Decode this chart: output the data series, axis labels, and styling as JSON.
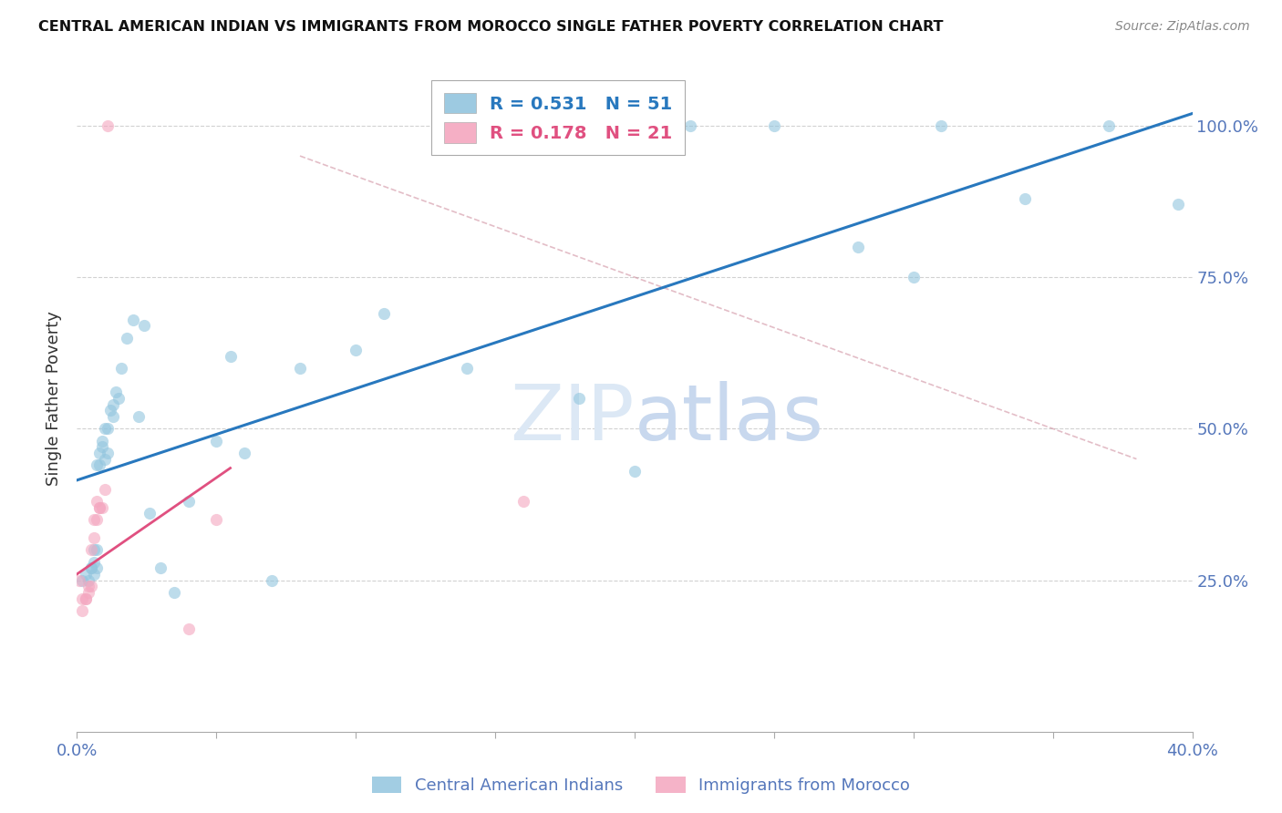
{
  "title": "CENTRAL AMERICAN INDIAN VS IMMIGRANTS FROM MOROCCO SINGLE FATHER POVERTY CORRELATION CHART",
  "source": "Source: ZipAtlas.com",
  "ylabel": "Single Father Poverty",
  "xlim": [
    0.0,
    0.4
  ],
  "ylim": [
    0.0,
    1.1
  ],
  "xticks": [
    0.0,
    0.05,
    0.1,
    0.15,
    0.2,
    0.25,
    0.3,
    0.35,
    0.4
  ],
  "yticks": [
    0.0,
    0.25,
    0.5,
    0.75,
    1.0
  ],
  "yticklabels": [
    "",
    "25.0%",
    "50.0%",
    "75.0%",
    "100.0%"
  ],
  "blue_R": "0.531",
  "blue_N": "51",
  "pink_R": "0.178",
  "pink_N": "21",
  "blue_color": "#92c5de",
  "pink_color": "#f4a6bf",
  "blue_line_color": "#2878be",
  "pink_line_color": "#e05080",
  "axis_color": "#5577bb",
  "grid_color": "#cccccc",
  "watermark_color": "#dce8f5",
  "blue_scatter_x": [
    0.002,
    0.003,
    0.004,
    0.005,
    0.005,
    0.006,
    0.006,
    0.006,
    0.007,
    0.007,
    0.007,
    0.008,
    0.008,
    0.009,
    0.009,
    0.01,
    0.01,
    0.011,
    0.011,
    0.012,
    0.013,
    0.013,
    0.014,
    0.015,
    0.016,
    0.018,
    0.02,
    0.022,
    0.024,
    0.026,
    0.03,
    0.035,
    0.04,
    0.05,
    0.055,
    0.06,
    0.07,
    0.08,
    0.1,
    0.11,
    0.14,
    0.18,
    0.2,
    0.22,
    0.25,
    0.28,
    0.3,
    0.31,
    0.34,
    0.37,
    0.395
  ],
  "blue_scatter_y": [
    0.25,
    0.26,
    0.25,
    0.27,
    0.27,
    0.26,
    0.28,
    0.3,
    0.27,
    0.3,
    0.44,
    0.44,
    0.46,
    0.47,
    0.48,
    0.45,
    0.5,
    0.5,
    0.46,
    0.53,
    0.52,
    0.54,
    0.56,
    0.55,
    0.6,
    0.65,
    0.68,
    0.52,
    0.67,
    0.36,
    0.27,
    0.23,
    0.38,
    0.48,
    0.62,
    0.46,
    0.25,
    0.6,
    0.63,
    0.69,
    0.6,
    0.55,
    0.43,
    1.0,
    1.0,
    0.8,
    0.75,
    1.0,
    0.88,
    1.0,
    0.87
  ],
  "pink_scatter_x": [
    0.001,
    0.002,
    0.002,
    0.003,
    0.003,
    0.004,
    0.004,
    0.005,
    0.005,
    0.006,
    0.006,
    0.007,
    0.007,
    0.008,
    0.008,
    0.009,
    0.01,
    0.011,
    0.04,
    0.05,
    0.16
  ],
  "pink_scatter_y": [
    0.25,
    0.2,
    0.22,
    0.22,
    0.22,
    0.23,
    0.24,
    0.24,
    0.3,
    0.32,
    0.35,
    0.35,
    0.38,
    0.37,
    0.37,
    0.37,
    0.4,
    1.0,
    0.17,
    0.35,
    0.38
  ],
  "blue_line_x0": 0.0,
  "blue_line_y0": 0.415,
  "blue_line_x1": 0.4,
  "blue_line_y1": 1.02,
  "pink_line_x0": 0.0,
  "pink_line_y0": 0.26,
  "pink_line_x1": 0.055,
  "pink_line_y1": 0.435,
  "ref_line_x0": 0.08,
  "ref_line_y0": 0.95,
  "ref_line_x1": 0.38,
  "ref_line_y1": 0.45,
  "scatter_size": 90,
  "marker_alpha": 0.6
}
